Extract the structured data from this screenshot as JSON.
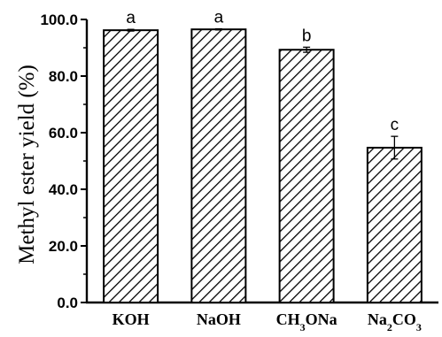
{
  "chart_data": {
    "type": "bar",
    "categories": [
      "KOH",
      "NaOH",
      "CH3ONa",
      "Na2CO3"
    ],
    "category_labels": [
      [
        {
          "t": "KOH",
          "sub": false
        }
      ],
      [
        {
          "t": "NaOH",
          "sub": false
        }
      ],
      [
        {
          "t": "CH",
          "sub": false
        },
        {
          "t": "3",
          "sub": true
        },
        {
          "t": "ONa",
          "sub": false
        }
      ],
      [
        {
          "t": "Na",
          "sub": false
        },
        {
          "t": "2",
          "sub": true
        },
        {
          "t": "CO",
          "sub": false
        },
        {
          "t": "3",
          "sub": true
        }
      ]
    ],
    "values": [
      96.2,
      96.5,
      89.3,
      54.7
    ],
    "errors": [
      0.3,
      0.2,
      0.9,
      4.0
    ],
    "significance": [
      "a",
      "a",
      "b",
      "c"
    ],
    "ylabel": "Methyl ester yield (%)",
    "ylim": [
      0,
      100
    ],
    "yticks": [
      0,
      20,
      40,
      60,
      80,
      100
    ],
    "ytick_labels": [
      "0.0",
      "20.0",
      "40.0",
      "60.0",
      "80.0",
      "100.0"
    ],
    "bar_fill": "hatched",
    "bar_color": "#000000",
    "grid": false
  }
}
